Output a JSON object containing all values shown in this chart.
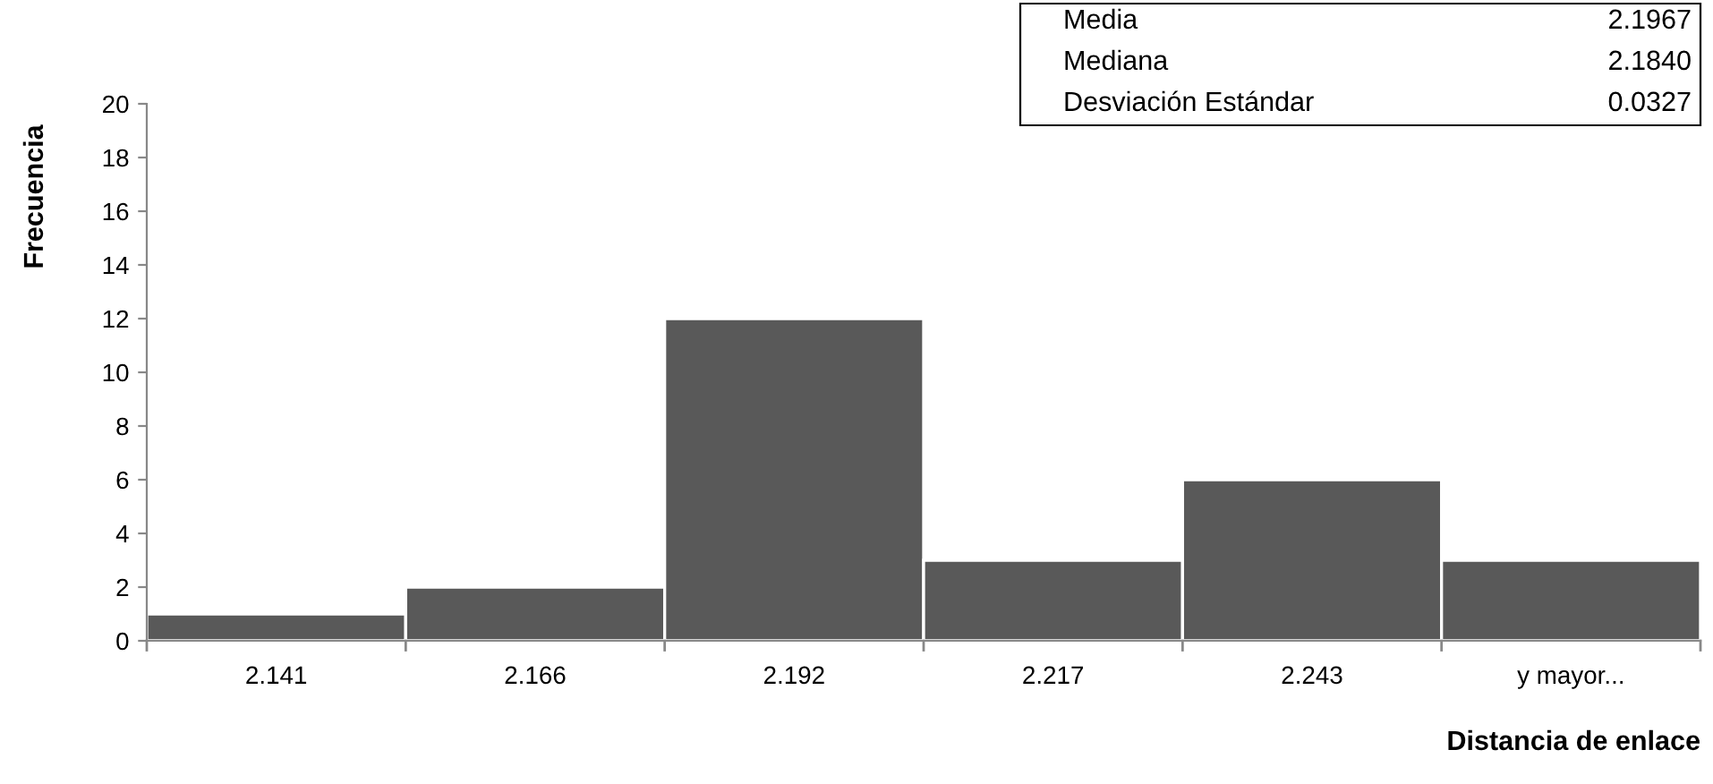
{
  "chart_data": {
    "type": "bar",
    "xlabel": "Distancia de enlace",
    "ylabel": "Frecuencia",
    "categories": [
      "2.141",
      "2.166",
      "2.192",
      "2.217",
      "2.243",
      "y mayor..."
    ],
    "values": [
      1,
      2,
      12,
      3,
      6,
      3
    ],
    "color": "#595959",
    "ylim": [
      0,
      20
    ],
    "yticks": [
      0,
      2,
      4,
      6,
      8,
      10,
      12,
      14,
      16,
      18,
      20
    ],
    "grid": false,
    "annotations": [
      "Media",
      "2.1967",
      "Mediana",
      "2.1840",
      "Desviación Estándar",
      "0.0327"
    ]
  }
}
